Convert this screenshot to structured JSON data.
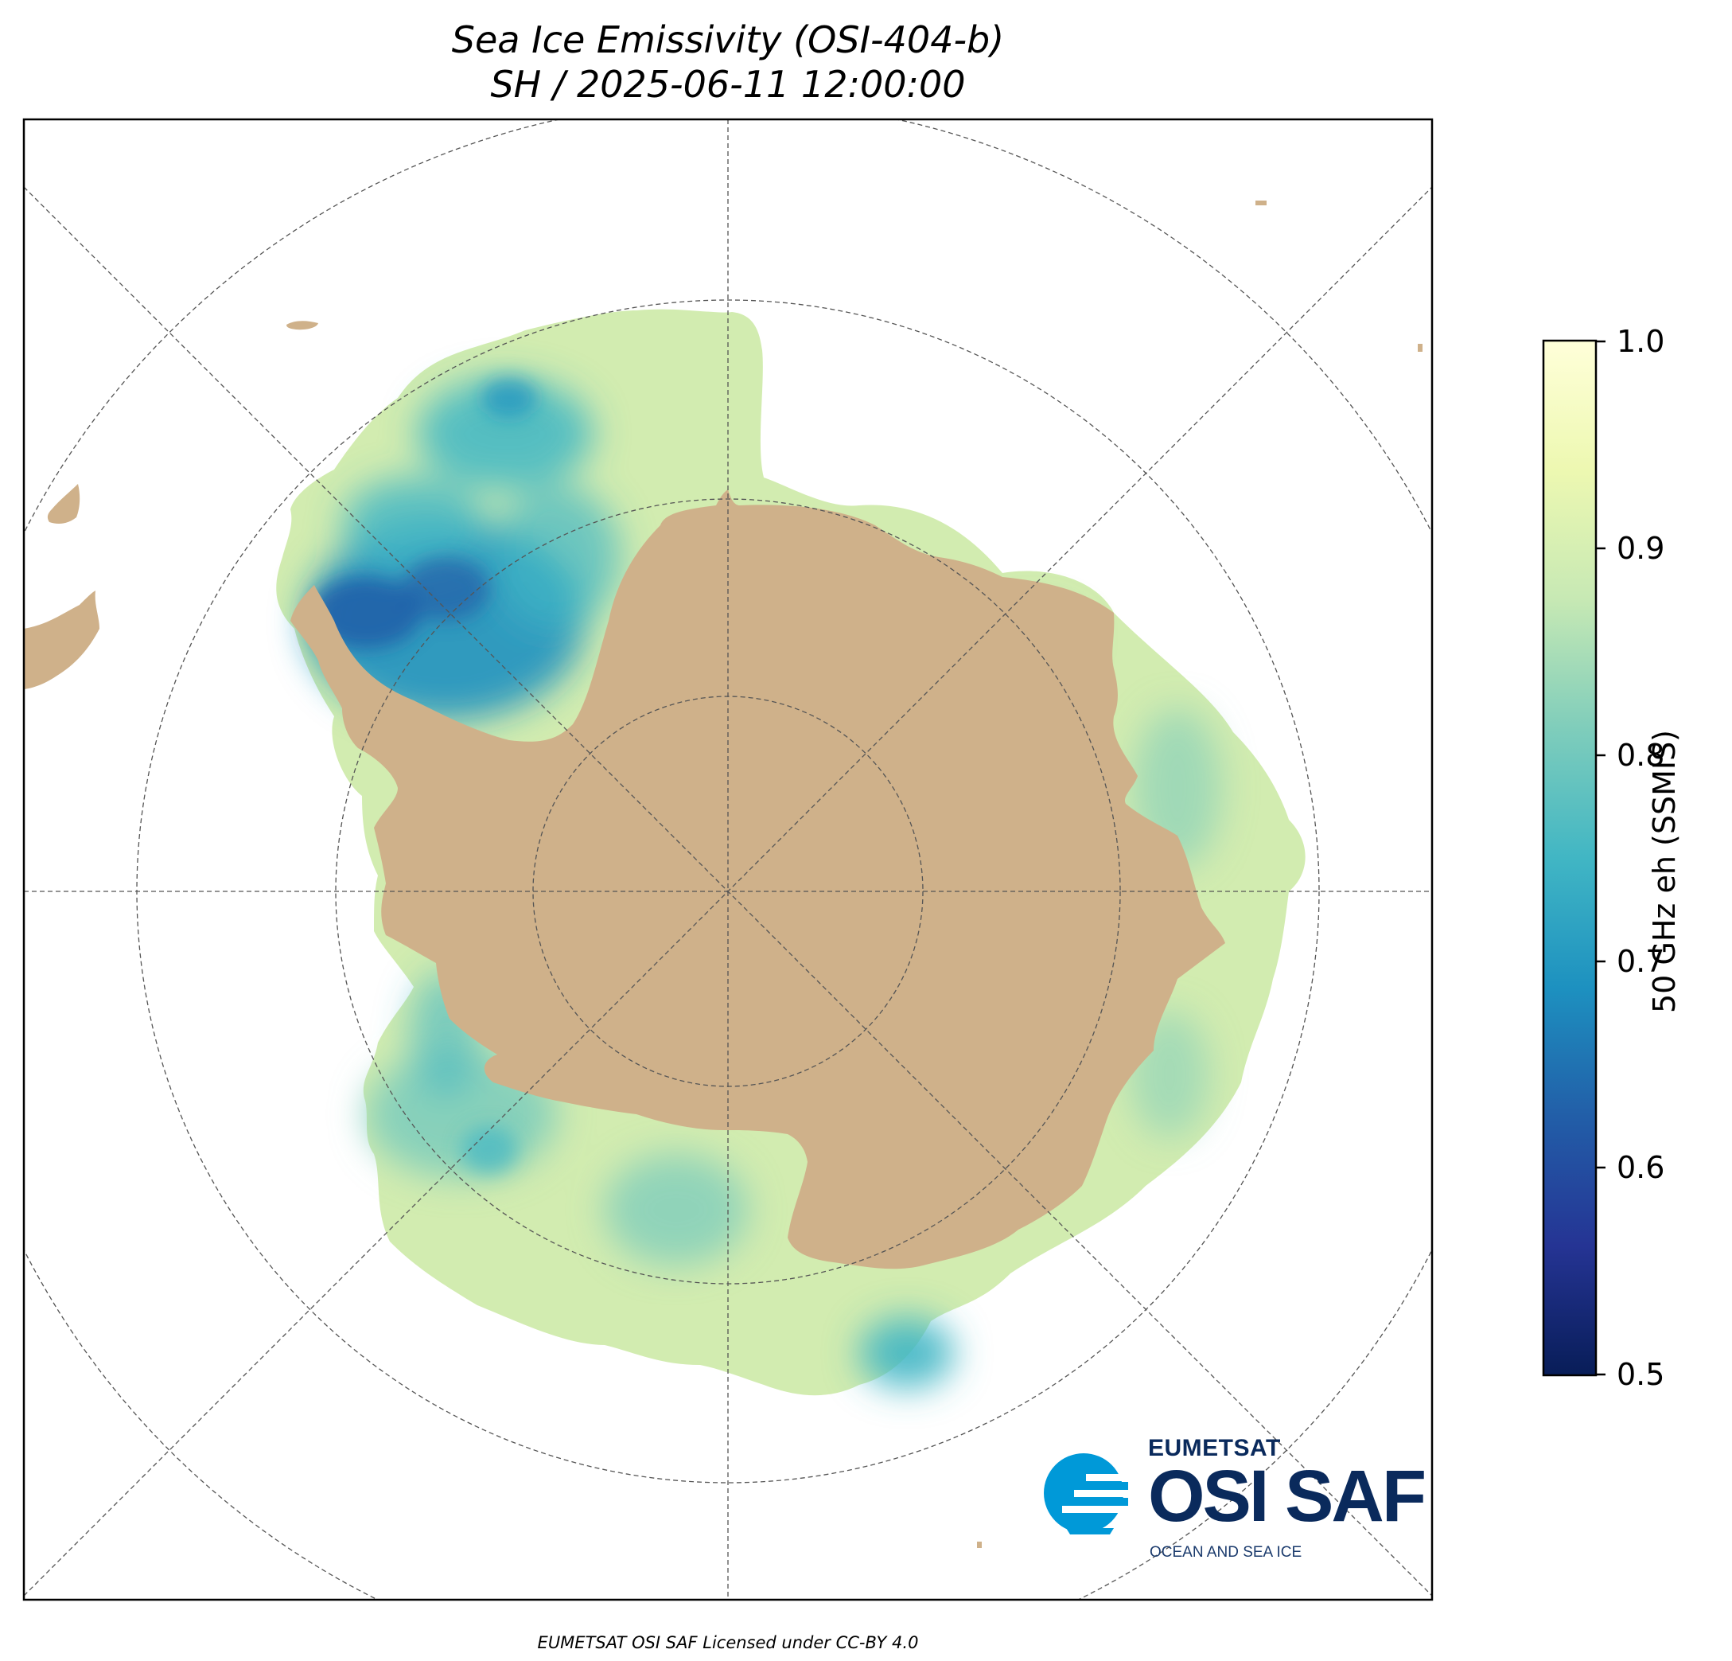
{
  "title": {
    "line1": "Sea Ice Emissivity (OSI-404-b)",
    "line2": "SH / 2025-06-11 12:00:00"
  },
  "map": {
    "projection": "south-polar-stereographic",
    "land_color": "#cfb18a",
    "background_color": "#ffffff",
    "graticule": "dashed grey"
  },
  "colorbar": {
    "label": "50 GHz eh (SSMIS)",
    "min": 0.5,
    "max": 1.0,
    "ticks": [
      "1.0",
      "0.9",
      "0.8",
      "0.7",
      "0.6",
      "0.5"
    ],
    "colormap": [
      "#081d58",
      "#253494",
      "#225ea8",
      "#1d91c0",
      "#41b6c4",
      "#7fcdbb",
      "#c7e9b4",
      "#edf8b1",
      "#ffffd9"
    ]
  },
  "logo": {
    "org": "EUMETSAT",
    "product": "OSI SAF",
    "tagline": "OCEAN AND SEA ICE",
    "accent_color": "#0099d8",
    "text_color": "#0a2a5c"
  },
  "footer": "EUMETSAT OSI SAF Licensed under CC-BY 4.0"
}
